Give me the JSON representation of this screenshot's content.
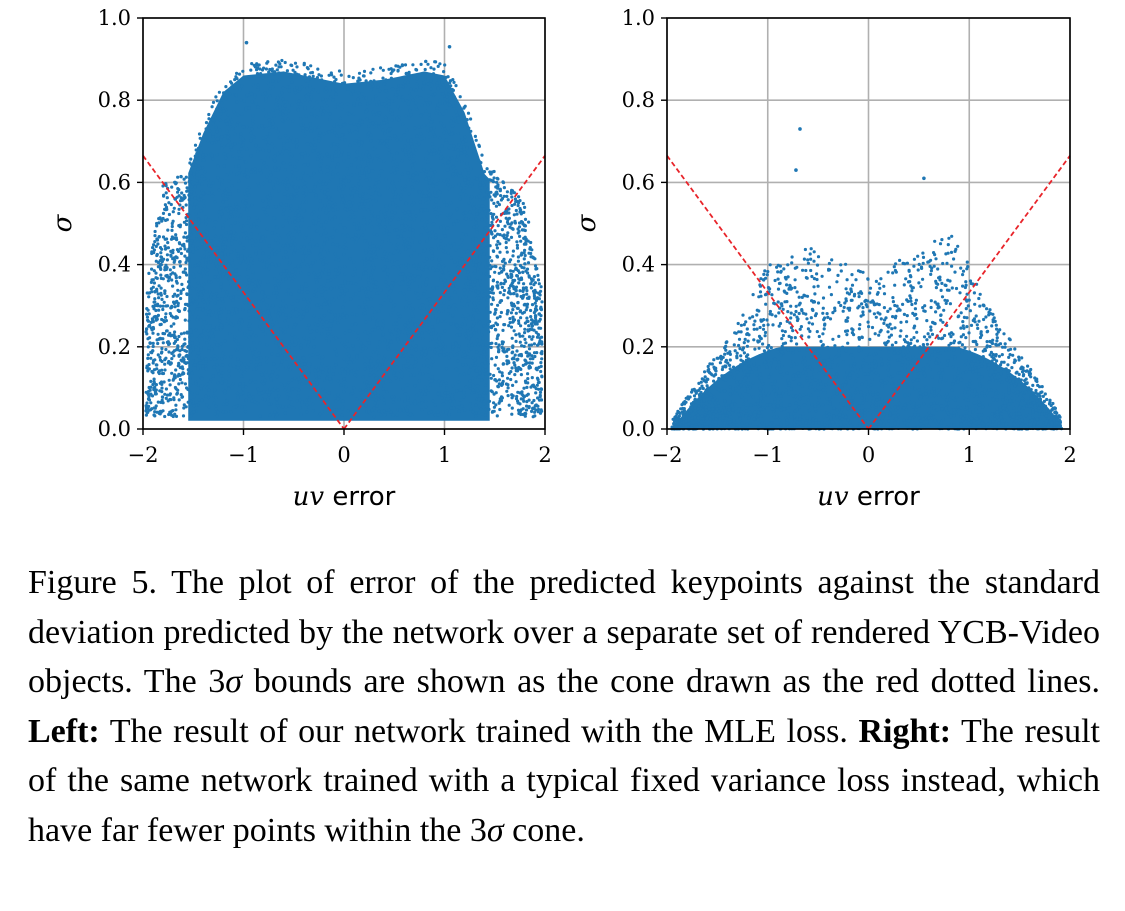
{
  "chart_data": [
    {
      "type": "scatter",
      "panel": "left",
      "xlabel_var": "uv",
      "xlabel_text": " error",
      "ylabel": "σ",
      "xlim": [
        -2,
        2
      ],
      "ylim": [
        0,
        1.0
      ],
      "xticks": [
        -2,
        -1,
        0,
        1,
        2
      ],
      "xtick_labels": [
        "−2",
        "−1",
        "0",
        "1",
        "2"
      ],
      "yticks": [
        0.0,
        0.2,
        0.4,
        0.6,
        0.8,
        1.0
      ],
      "ytick_labels": [
        "0.0",
        "0.2",
        "0.4",
        "0.6",
        "0.8",
        "1.0"
      ],
      "grid": true,
      "point_color": "#1f77b4",
      "bound_color": "#e8242a",
      "bound_lines": [
        {
          "name": "3σ bound left",
          "x": [
            -2,
            0
          ],
          "y": [
            0.665,
            0
          ]
        },
        {
          "name": "3σ bound right",
          "x": [
            0,
            2
          ],
          "y": [
            0,
            0.665
          ]
        }
      ],
      "dense_region": {
        "x_range": [
          -1.55,
          1.45
        ],
        "y_range": [
          0,
          0.9
        ]
      },
      "density_profile": {
        "x": [
          -2,
          -1.8,
          -1.6,
          -1.4,
          -1.2,
          -1.0,
          -0.6,
          -0.2,
          0,
          0.4,
          0.8,
          1.0,
          1.2,
          1.4,
          1.6,
          1.8,
          2
        ],
        "y_max": [
          0.3,
          0.6,
          0.62,
          0.75,
          0.85,
          0.89,
          0.9,
          0.88,
          0.87,
          0.88,
          0.9,
          0.89,
          0.8,
          0.65,
          0.6,
          0.55,
          0.3
        ]
      },
      "outliers": [
        {
          "x": -0.97,
          "y": 0.94
        },
        {
          "x": 1.05,
          "y": 0.93
        }
      ]
    },
    {
      "type": "scatter",
      "panel": "right",
      "xlabel_var": "uv",
      "xlabel_text": " error",
      "ylabel": "σ",
      "xlim": [
        -2,
        2
      ],
      "ylim": [
        0,
        1.0
      ],
      "xticks": [
        -2,
        -1,
        0,
        1,
        2
      ],
      "xtick_labels": [
        "−2",
        "−1",
        "0",
        "1",
        "2"
      ],
      "yticks": [
        0.0,
        0.2,
        0.4,
        0.6,
        0.8,
        1.0
      ],
      "ytick_labels": [
        "0.0",
        "0.2",
        "0.4",
        "0.6",
        "0.8",
        "1.0"
      ],
      "grid": true,
      "point_color": "#1f77b4",
      "bound_color": "#e8242a",
      "bound_lines": [
        {
          "name": "3σ bound left",
          "x": [
            -2,
            0
          ],
          "y": [
            0.665,
            0
          ]
        },
        {
          "name": "3σ bound right",
          "x": [
            0,
            2
          ],
          "y": [
            0,
            0.665
          ]
        }
      ],
      "dense_region": {
        "x_range": [
          -1.9,
          1.9
        ],
        "y_range": [
          0,
          0.22
        ]
      },
      "density_profile": {
        "x": [
          -1.95,
          -1.8,
          -1.6,
          -1.4,
          -1.2,
          -1.0,
          -0.6,
          -0.2,
          0,
          0.4,
          0.8,
          1.0,
          1.2,
          1.4,
          1.6,
          1.8,
          1.92
        ],
        "y_max": [
          0.02,
          0.08,
          0.15,
          0.22,
          0.3,
          0.4,
          0.45,
          0.4,
          0.38,
          0.42,
          0.48,
          0.4,
          0.3,
          0.22,
          0.15,
          0.08,
          0.02
        ]
      },
      "outliers": [
        {
          "x": -0.68,
          "y": 0.73
        },
        {
          "x": -0.72,
          "y": 0.63
        },
        {
          "x": 0.55,
          "y": 0.61
        }
      ]
    }
  ],
  "caption": {
    "fig_label": "Figure 5.",
    "part1": " The plot of error of the predicted keypoints against the standard deviation predicted by the network over a separate set of rendered YCB-Video objects. The 3",
    "sigma": "σ",
    "part2": " bounds are shown as the cone drawn as the red dotted lines. ",
    "left_label": "Left:",
    "part3": " The result of our network trained with the MLE loss. ",
    "right_label": "Right:",
    "part4": " The result of the same network trained with a typical fixed variance loss instead, which have far fewer points within the 3",
    "sigma2": "σ",
    "part5": " cone."
  }
}
